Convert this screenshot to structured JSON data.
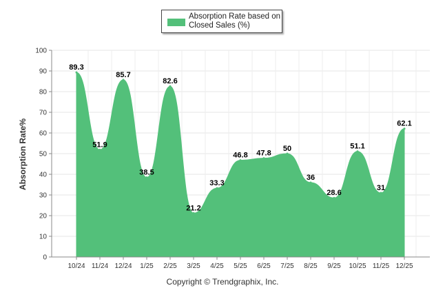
{
  "chart_data": {
    "type": "area",
    "title": "",
    "legend": {
      "label_line1": "Absorption Rate based on",
      "label_line2": "Closed Sales (%)",
      "placement": "top-center"
    },
    "xlabel": "",
    "ylabel": "Absorption Rate%",
    "ylim": [
      0,
      100
    ],
    "yticks": [
      0,
      10,
      20,
      30,
      40,
      50,
      60,
      70,
      80,
      90,
      100
    ],
    "grid": true,
    "categories": [
      "10/24",
      "11/24",
      "12/24",
      "1/25",
      "2/25",
      "3/25",
      "4/25",
      "5/25",
      "6/25",
      "7/25",
      "8/25",
      "9/25",
      "10/25",
      "11/25",
      "12/25"
    ],
    "series": [
      {
        "name": "Absorption Rate based on Closed Sales (%)",
        "values": [
          89.3,
          51.9,
          85.7,
          38.5,
          82.6,
          21.2,
          33.3,
          46.8,
          47.8,
          50,
          36,
          28.6,
          51.1,
          31,
          62.1
        ]
      }
    ],
    "value_labels": [
      "89.3",
      "51.9",
      "85.7",
      "38.5",
      "82.6",
      "21.2",
      "33.3",
      "46.8",
      "47.8",
      "50",
      "36",
      "28.6",
      "51.1",
      "31",
      "62.1"
    ],
    "fill_color": "#53c07a"
  },
  "footer": {
    "copyright": "Copyright © Trendgraphix, Inc."
  }
}
